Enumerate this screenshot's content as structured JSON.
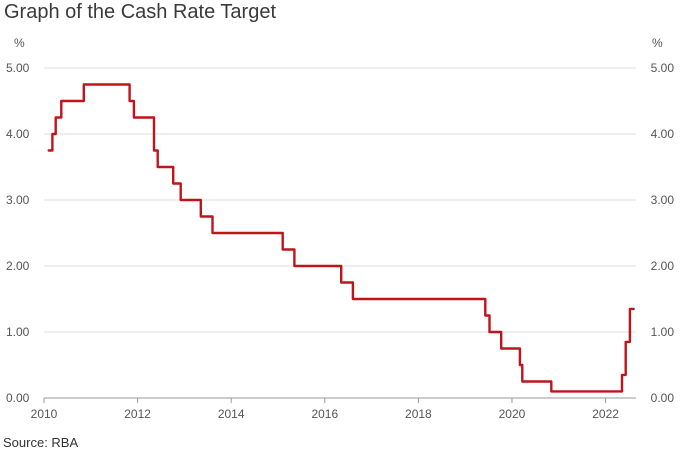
{
  "page": {
    "title": "Graph of the Cash Rate Target",
    "source": "Source: RBA"
  },
  "chart_data": {
    "type": "line",
    "title": "Graph of the Cash Rate Target",
    "xlabel": "",
    "ylabel": "%",
    "ylabel_right": "%",
    "xlim": [
      2010.0,
      2022.65
    ],
    "ylim": [
      0,
      5
    ],
    "x_ticks": [
      2010,
      2012,
      2014,
      2016,
      2018,
      2020,
      2022
    ],
    "x_tick_labels": [
      "2010",
      "2012",
      "2014",
      "2016",
      "2018",
      "2020",
      "2022"
    ],
    "y_ticks": [
      0,
      1,
      2,
      3,
      4,
      5
    ],
    "y_tick_labels": [
      "0.00",
      "1.00",
      "2.00",
      "3.00",
      "4.00",
      "5.00"
    ],
    "grid": "horizontal",
    "line_color": "#c0141c",
    "series": [
      {
        "x": [
          2010.1,
          2010.18,
          2010.18,
          2010.25,
          2010.25,
          2010.37,
          2010.37,
          2010.85,
          2010.85,
          2011.83,
          2011.83,
          2011.92,
          2011.92,
          2012.35,
          2012.35,
          2012.43,
          2012.43,
          2012.76,
          2012.76,
          2012.92,
          2012.92,
          2013.35,
          2013.35,
          2013.6,
          2013.6,
          2015.1,
          2015.1,
          2015.35,
          2015.35,
          2016.35,
          2016.35,
          2016.6,
          2016.6,
          2019.43,
          2019.43,
          2019.52,
          2019.52,
          2019.77,
          2019.77,
          2020.17,
          2020.17,
          2020.22,
          2020.22,
          2020.84,
          2020.84,
          2022.35,
          2022.35,
          2022.43,
          2022.43,
          2022.52,
          2022.52,
          2022.6
        ],
        "y": [
          3.75,
          3.75,
          4.0,
          4.0,
          4.25,
          4.25,
          4.5,
          4.5,
          4.75,
          4.75,
          4.5,
          4.5,
          4.25,
          4.25,
          3.75,
          3.75,
          3.5,
          3.5,
          3.25,
          3.25,
          3.0,
          3.0,
          2.75,
          2.75,
          2.5,
          2.5,
          2.25,
          2.25,
          2.0,
          2.0,
          1.75,
          1.75,
          1.5,
          1.5,
          1.25,
          1.25,
          1.0,
          1.0,
          0.75,
          0.75,
          0.5,
          0.5,
          0.25,
          0.25,
          0.1,
          0.1,
          0.35,
          0.35,
          0.85,
          0.85,
          1.35,
          1.35
        ]
      }
    ]
  }
}
